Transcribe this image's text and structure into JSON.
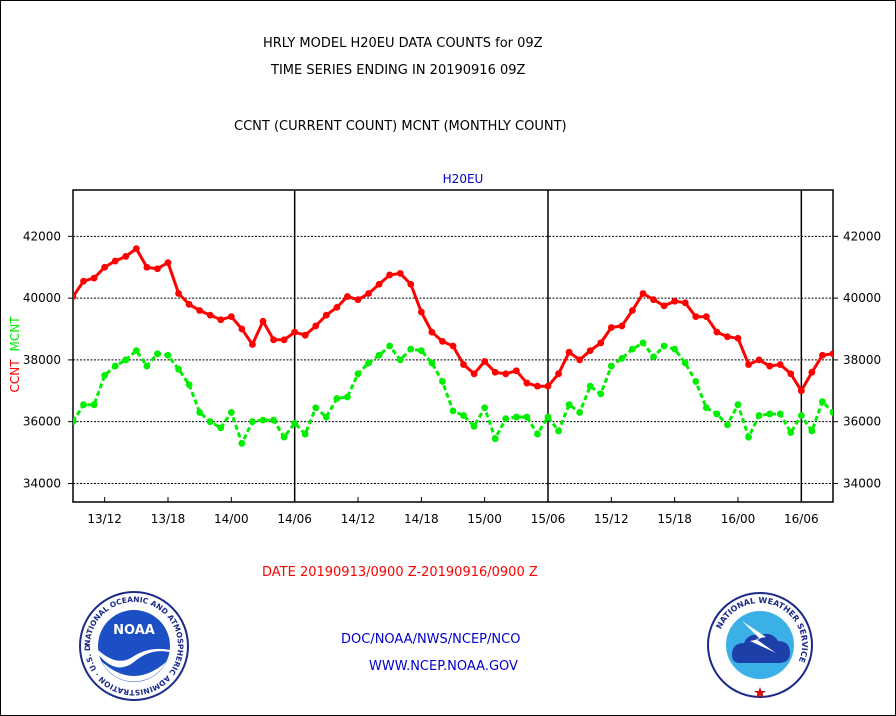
{
  "title_line1": "HRLY MODEL H20EU DATA COUNTS for 09Z",
  "title_line2": "TIME SERIES ENDING IN 20190916 09Z",
  "subtitle": "CCNT (CURRENT COUNT) MCNT (MONTHLY COUNT)",
  "footer": {
    "date_range": "DATE 20190913/0900 Z-20190916/0900 Z",
    "org": "DOC/NOAA/NWS/NCEP/NCO",
    "url": "WWW.NCEP.NOAA.GOV"
  },
  "logos": {
    "noaa": {
      "text": "NOAA",
      "ring_text": "NATIONAL OCEANIC AND ATMOSPHERIC ADMINISTRATION · U.S. DEPARTMENT OF COMMERCE"
    },
    "nws": {
      "ring_text": "NATIONAL WEATHER SERVICE"
    }
  },
  "colors": {
    "ccnt": "#ff0000",
    "mcnt": "#00ee00",
    "panel_label": "#0000cc",
    "date": "#ff0000",
    "footer": "#0000cc"
  },
  "chart_data": {
    "type": "line",
    "panel_title": "H20EU",
    "ylabel_ccnt": "CCNT",
    "ylabel_mcnt": "MCNT",
    "ylim": [
      33400,
      43500
    ],
    "yticks": [
      34000,
      36000,
      38000,
      40000,
      42000
    ],
    "ytick_labels": [
      "34000",
      "36000",
      "38000",
      "40000",
      "42000"
    ],
    "xlim": [
      0,
      72
    ],
    "xticks": [
      3,
      9,
      15,
      21,
      27,
      33,
      39,
      45,
      51,
      57,
      63,
      69
    ],
    "xtick_labels": [
      "13/12",
      "13/18",
      "14/00",
      "14/06",
      "14/12",
      "14/18",
      "15/00",
      "15/06",
      "15/12",
      "15/18",
      "16/00",
      "16/06"
    ],
    "day_dividers": [
      21,
      45,
      69
    ],
    "grid_horizontal": true,
    "series": [
      {
        "name": "CCNT",
        "color": "#ff0000",
        "values": [
          40050,
          40550,
          40650,
          41000,
          41200,
          41350,
          41600,
          41000,
          40950,
          41150,
          40150,
          39800,
          39600,
          39450,
          39300,
          39400,
          39000,
          38500,
          39250,
          38650,
          38650,
          38900,
          38800,
          39100,
          39450,
          39700,
          40050,
          39950,
          40150,
          40450,
          40750,
          40800,
          40450,
          39550,
          38900,
          38600,
          38450,
          37850,
          37550,
          37950,
          37600,
          37550,
          37650,
          37250,
          37150,
          37150,
          37550,
          38250,
          38000,
          38300,
          38550,
          39050,
          39100,
          39600,
          40150,
          39950,
          39750,
          39900,
          39850,
          39400,
          39400,
          38900,
          38750,
          38700,
          37850,
          38000,
          37800,
          37850,
          37550,
          37000,
          37600,
          38150,
          38200
        ]
      },
      {
        "name": "MCNT",
        "color": "#00ee00",
        "values": [
          36000,
          36550,
          36550,
          37500,
          37800,
          38000,
          38300,
          37800,
          38200,
          38150,
          37700,
          37200,
          36300,
          36000,
          35800,
          36300,
          35300,
          36000,
          36050,
          36050,
          35500,
          35950,
          35600,
          36450,
          36150,
          36750,
          36800,
          37550,
          37900,
          38150,
          38450,
          38000,
          38350,
          38300,
          37900,
          37300,
          36350,
          36200,
          35850,
          36450,
          35450,
          36100,
          36150,
          36150,
          35600,
          36150,
          35700,
          36550,
          36300,
          37150,
          36900,
          37800,
          38050,
          38350,
          38550,
          38100,
          38450,
          38350,
          37900,
          37300,
          36450,
          36250,
          35900,
          36550,
          35500,
          36200,
          36250,
          36250,
          35650,
          36200,
          35700,
          36650,
          36300
        ]
      }
    ]
  }
}
